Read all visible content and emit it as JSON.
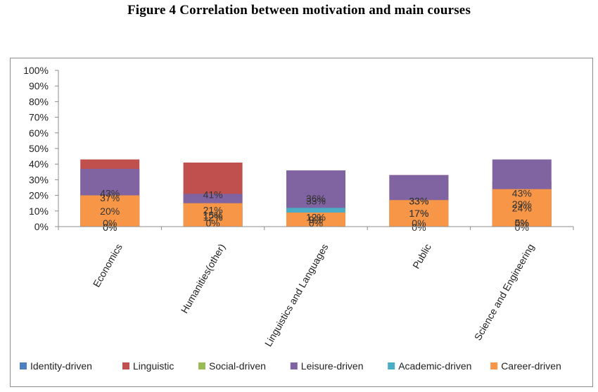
{
  "page": {
    "title": "Figure 4    Correlation between motivation and main courses"
  },
  "chart_data": {
    "type": "bar",
    "stacked": true,
    "title": "Figure 4    Correlation between motivation and main courses",
    "xlabel": "",
    "ylabel": "",
    "ylim": [
      0,
      100
    ],
    "y_ticks": [
      "0%",
      "10%",
      "20%",
      "30%",
      "40%",
      "50%",
      "60%",
      "70%",
      "80%",
      "90%",
      "100%"
    ],
    "categories": [
      "Economics",
      "Humanities(other)",
      "Linguistics and Languages",
      "Public",
      "Science and Engineering"
    ],
    "grid": false,
    "legend_position": "bottom",
    "series": [
      {
        "name": "Identity-driven",
        "color": "#4f81bd",
        "values": [
          0,
          0,
          0,
          0,
          0
        ],
        "labels": [
          "0%",
          "0%",
          "0%",
          "0%",
          "0%"
        ]
      },
      {
        "name": "Linguistic",
        "color": "#c0504d",
        "values": [
          43,
          41,
          33,
          33,
          29
        ],
        "labels": [
          "43%",
          "41%",
          "33%",
          "33%",
          "29%"
        ]
      },
      {
        "name": "Social-driven",
        "color": "#9bbb59",
        "values": [
          0,
          12,
          9,
          17,
          5
        ],
        "labels": [
          "0%",
          "12%",
          "9%",
          "17%",
          "5%"
        ]
      },
      {
        "name": "Leisure-driven",
        "color": "#8064a2",
        "values": [
          37,
          21,
          36,
          33,
          43
        ],
        "labels": [
          "37%",
          "21%",
          "36%",
          "33%",
          "43%"
        ]
      },
      {
        "name": "Academic-driven",
        "color": "#4bacc6",
        "values": [
          0,
          12,
          12,
          0,
          0
        ],
        "labels": [
          "0%",
          "12%",
          "12%",
          "0%",
          "0%"
        ]
      },
      {
        "name": "Career-driven",
        "color": "#f79646",
        "values": [
          20,
          15,
          9,
          17,
          24
        ],
        "labels": [
          "20%",
          "15%",
          "9%",
          "17%",
          "24%"
        ]
      }
    ]
  }
}
